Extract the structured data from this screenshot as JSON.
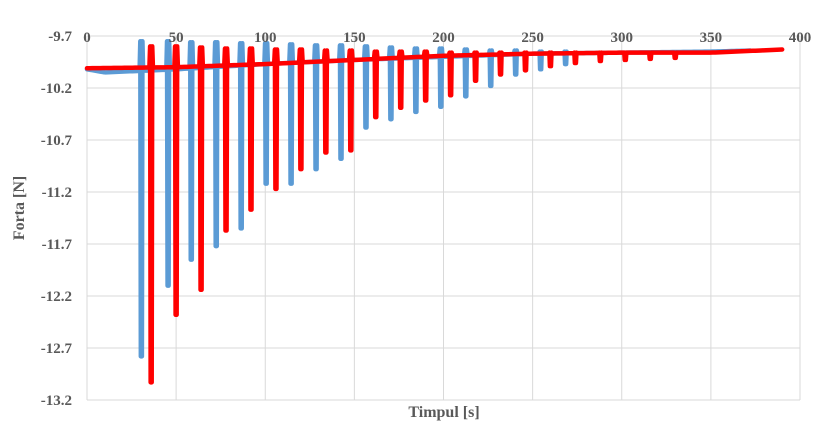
{
  "chart_data": {
    "type": "line",
    "title": "",
    "xlabel": "Timpul [s]",
    "ylabel": "Forta [N]",
    "xlim": [
      0,
      400
    ],
    "ylim": [
      -13.2,
      -9.7
    ],
    "x_ticks": [
      0,
      50,
      100,
      150,
      200,
      250,
      300,
      350,
      400
    ],
    "y_ticks": [
      -9.7,
      -10.2,
      -10.7,
      -11.2,
      -11.7,
      -12.2,
      -12.7,
      -13.2
    ],
    "x_tick_labels": [
      "0",
      "50",
      "100",
      "150",
      "200",
      "250",
      "300",
      "350",
      "400"
    ],
    "y_tick_labels": [
      "-9.7",
      "-10.2",
      "-10.7",
      "-11.2",
      "-11.7",
      "-12.2",
      "-12.7",
      "-13.2"
    ],
    "x_axis_position": "top",
    "grid": true,
    "legend": false,
    "series": [
      {
        "color": "#5b9bd5",
        "baseline": [
          [
            0,
            -10.02
          ],
          [
            10,
            -10.05
          ],
          [
            50,
            -10.02
          ],
          [
            100,
            -9.97
          ],
          [
            150,
            -9.93
          ],
          [
            200,
            -9.9
          ],
          [
            250,
            -9.87
          ],
          [
            300,
            -9.86
          ],
          [
            350,
            -9.85
          ],
          [
            372,
            -9.84
          ]
        ],
        "spikes": [
          {
            "x": 30.5,
            "min": -12.78,
            "max": -9.75
          },
          {
            "x": 45.5,
            "min": -12.1,
            "max": -9.75
          },
          {
            "x": 58.5,
            "min": -11.85,
            "max": -9.76
          },
          {
            "x": 72.5,
            "min": -11.72,
            "max": -9.76
          },
          {
            "x": 86.5,
            "min": -11.55,
            "max": -9.77
          },
          {
            "x": 100.5,
            "min": -11.12,
            "max": -9.77
          },
          {
            "x": 114.5,
            "min": -11.12,
            "max": -9.78
          },
          {
            "x": 128.5,
            "min": -10.98,
            "max": -9.79
          },
          {
            "x": 142.5,
            "min": -10.88,
            "max": -9.79
          },
          {
            "x": 156.5,
            "min": -10.58,
            "max": -9.8
          },
          {
            "x": 170.5,
            "min": -10.5,
            "max": -9.81
          },
          {
            "x": 184.5,
            "min": -10.43,
            "max": -9.82
          },
          {
            "x": 198.5,
            "min": -10.38,
            "max": -9.82
          },
          {
            "x": 212.5,
            "min": -10.28,
            "max": -9.83
          },
          {
            "x": 226.5,
            "min": -10.18,
            "max": -9.84
          },
          {
            "x": 240.5,
            "min": -10.07,
            "max": -9.84
          },
          {
            "x": 254.5,
            "min": -10.02,
            "max": -9.85
          },
          {
            "x": 268.5,
            "min": -9.97,
            "max": -9.85
          }
        ]
      },
      {
        "color": "#ff0000",
        "baseline": [
          [
            0,
            -10.01
          ],
          [
            50,
            -10.0
          ],
          [
            100,
            -9.97
          ],
          [
            150,
            -9.93
          ],
          [
            200,
            -9.89
          ],
          [
            250,
            -9.87
          ],
          [
            300,
            -9.86
          ],
          [
            350,
            -9.86
          ],
          [
            390,
            -9.83
          ]
        ],
        "spikes": [
          {
            "x": 36,
            "min": -13.03,
            "max": -9.8
          },
          {
            "x": 50,
            "min": -12.38,
            "max": -9.8
          },
          {
            "x": 64,
            "min": -12.14,
            "max": -9.81
          },
          {
            "x": 78,
            "min": -11.57,
            "max": -9.82
          },
          {
            "x": 92,
            "min": -11.37,
            "max": -9.82
          },
          {
            "x": 106,
            "min": -11.17,
            "max": -9.83
          },
          {
            "x": 120,
            "min": -10.98,
            "max": -9.83
          },
          {
            "x": 134,
            "min": -10.82,
            "max": -9.84
          },
          {
            "x": 148,
            "min": -10.8,
            "max": -9.84
          },
          {
            "x": 162,
            "min": -10.48,
            "max": -9.85
          },
          {
            "x": 176,
            "min": -10.39,
            "max": -9.85
          },
          {
            "x": 190,
            "min": -10.32,
            "max": -9.85
          },
          {
            "x": 204,
            "min": -10.27,
            "max": -9.86
          },
          {
            "x": 218,
            "min": -10.13,
            "max": -9.86
          },
          {
            "x": 232,
            "min": -10.07,
            "max": -9.86
          },
          {
            "x": 246,
            "min": -10.03,
            "max": -9.86
          },
          {
            "x": 260,
            "min": -9.99,
            "max": -9.86
          },
          {
            "x": 274,
            "min": -9.96,
            "max": -9.86
          },
          {
            "x": 288,
            "min": -9.94,
            "max": -9.86
          },
          {
            "x": 302,
            "min": -9.93,
            "max": -9.86
          },
          {
            "x": 316,
            "min": -9.92,
            "max": -9.86
          },
          {
            "x": 330,
            "min": -9.91,
            "max": -9.86
          }
        ]
      }
    ]
  }
}
